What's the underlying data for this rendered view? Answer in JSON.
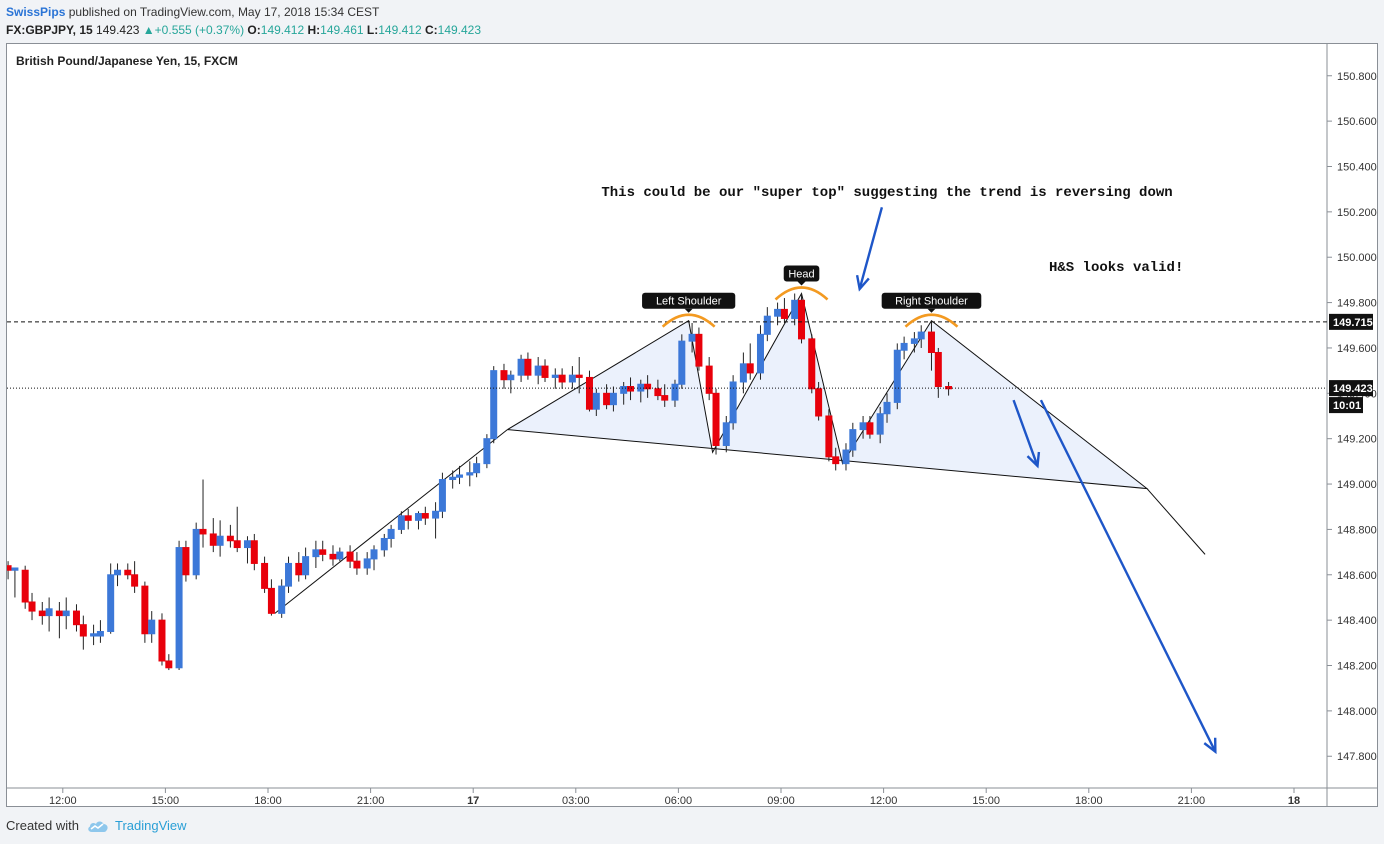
{
  "header": {
    "author": "SwissPips",
    "published": "published on TradingView.com, May 17, 2018 15:34 CEST",
    "symbol": "FX:GBPJPY, 15",
    "price": "149.423",
    "change": "+0.555 (+0.37%)",
    "o_label": "O:",
    "o_value": "149.412",
    "h_label": "H:",
    "h_value": "149.461",
    "l_label": "L:",
    "l_value": "149.412",
    "c_label": "C:",
    "c_value": "149.423"
  },
  "footer": {
    "created_with": "Created with",
    "brand": "TradingView",
    "brand_icon": "tradingview-cloud-icon"
  },
  "colors": {
    "bull": "#3c78d8",
    "bear": "#e8000b",
    "arrow": "#1e56c8",
    "arc": "#f39a21",
    "pattern_fill": "#e8eefb",
    "price_tag": "#111111"
  },
  "chart_data": {
    "type": "candlestick",
    "title": "British Pound/Japanese Yen, 15, FXCM",
    "ylim": [
      147.66,
      150.94
    ],
    "y_ticks": [
      150.8,
      150.6,
      150.4,
      150.2,
      150.0,
      149.8,
      149.6,
      149.4,
      149.2,
      149.0,
      148.8,
      148.6,
      148.4,
      148.2,
      148.0,
      147.8
    ],
    "y_tick_labels": [
      "150.800",
      "150.600",
      "150.400",
      "150.200",
      "150.000",
      "149.800",
      "149.600",
      "149.400",
      "149.200",
      "149.000",
      "148.800",
      "148.600",
      "148.400",
      "148.200",
      "148.000",
      "147.800"
    ],
    "x_ticks": [
      2.0,
      5.0,
      8.0,
      11.0,
      14.0,
      17.0,
      20.0,
      23.0,
      26.0,
      29.0,
      32.0,
      35.0,
      38.0
    ],
    "x_tick_labels": [
      "12:00",
      "15:00",
      "18:00",
      "21:00",
      "17",
      "03:00",
      "06:00",
      "09:00",
      "12:00",
      "15:00",
      "18:00",
      "21:00",
      "18"
    ],
    "xlim": [
      0.4,
      39.2
    ],
    "candles": [
      {
        "t": 0.4,
        "o": 148.64,
        "h": 148.66,
        "l": 148.58,
        "c": 148.62
      },
      {
        "t": 0.6,
        "o": 148.62,
        "h": 148.63,
        "l": 148.5,
        "c": 148.63
      },
      {
        "t": 0.9,
        "o": 148.62,
        "h": 148.64,
        "l": 148.45,
        "c": 148.48
      },
      {
        "t": 1.1,
        "o": 148.48,
        "h": 148.52,
        "l": 148.4,
        "c": 148.44
      },
      {
        "t": 1.4,
        "o": 148.44,
        "h": 148.48,
        "l": 148.38,
        "c": 148.42
      },
      {
        "t": 1.6,
        "o": 148.42,
        "h": 148.5,
        "l": 148.35,
        "c": 148.45
      },
      {
        "t": 1.9,
        "o": 148.44,
        "h": 148.48,
        "l": 148.32,
        "c": 148.42
      },
      {
        "t": 2.1,
        "o": 148.42,
        "h": 148.5,
        "l": 148.36,
        "c": 148.44
      },
      {
        "t": 2.4,
        "o": 148.44,
        "h": 148.47,
        "l": 148.35,
        "c": 148.38
      },
      {
        "t": 2.6,
        "o": 148.38,
        "h": 148.42,
        "l": 148.27,
        "c": 148.33
      },
      {
        "t": 2.9,
        "o": 148.33,
        "h": 148.38,
        "l": 148.29,
        "c": 148.34
      },
      {
        "t": 3.1,
        "o": 148.33,
        "h": 148.4,
        "l": 148.3,
        "c": 148.35
      },
      {
        "t": 3.4,
        "o": 148.35,
        "h": 148.65,
        "l": 148.34,
        "c": 148.6
      },
      {
        "t": 3.6,
        "o": 148.6,
        "h": 148.65,
        "l": 148.55,
        "c": 148.62
      },
      {
        "t": 3.9,
        "o": 148.62,
        "h": 148.65,
        "l": 148.58,
        "c": 148.6
      },
      {
        "t": 4.1,
        "o": 148.6,
        "h": 148.66,
        "l": 148.52,
        "c": 148.55
      },
      {
        "t": 4.4,
        "o": 148.55,
        "h": 148.57,
        "l": 148.3,
        "c": 148.34
      },
      {
        "t": 4.6,
        "o": 148.34,
        "h": 148.44,
        "l": 148.3,
        "c": 148.4
      },
      {
        "t": 4.9,
        "o": 148.4,
        "h": 148.43,
        "l": 148.2,
        "c": 148.22
      },
      {
        "t": 5.1,
        "o": 148.22,
        "h": 148.25,
        "l": 148.18,
        "c": 148.19
      },
      {
        "t": 5.4,
        "o": 148.19,
        "h": 148.75,
        "l": 148.18,
        "c": 148.72
      },
      {
        "t": 5.6,
        "o": 148.72,
        "h": 148.75,
        "l": 148.57,
        "c": 148.6
      },
      {
        "t": 5.9,
        "o": 148.6,
        "h": 148.83,
        "l": 148.58,
        "c": 148.8
      },
      {
        "t": 6.1,
        "o": 148.8,
        "h": 149.02,
        "l": 148.72,
        "c": 148.78
      },
      {
        "t": 6.4,
        "o": 148.78,
        "h": 148.85,
        "l": 148.7,
        "c": 148.73
      },
      {
        "t": 6.6,
        "o": 148.73,
        "h": 148.84,
        "l": 148.68,
        "c": 148.77
      },
      {
        "t": 6.9,
        "o": 148.77,
        "h": 148.82,
        "l": 148.72,
        "c": 148.75
      },
      {
        "t": 7.1,
        "o": 148.75,
        "h": 148.9,
        "l": 148.7,
        "c": 148.72
      },
      {
        "t": 7.4,
        "o": 148.72,
        "h": 148.77,
        "l": 148.65,
        "c": 148.75
      },
      {
        "t": 7.6,
        "o": 148.75,
        "h": 148.78,
        "l": 148.62,
        "c": 148.65
      },
      {
        "t": 7.9,
        "o": 148.65,
        "h": 148.68,
        "l": 148.52,
        "c": 148.54
      },
      {
        "t": 8.1,
        "o": 148.54,
        "h": 148.58,
        "l": 148.42,
        "c": 148.43
      },
      {
        "t": 8.4,
        "o": 148.43,
        "h": 148.58,
        "l": 148.41,
        "c": 148.55
      },
      {
        "t": 8.6,
        "o": 148.55,
        "h": 148.68,
        "l": 148.52,
        "c": 148.65
      },
      {
        "t": 8.9,
        "o": 148.65,
        "h": 148.7,
        "l": 148.57,
        "c": 148.6
      },
      {
        "t": 9.1,
        "o": 148.6,
        "h": 148.72,
        "l": 148.58,
        "c": 148.68
      },
      {
        "t": 9.4,
        "o": 148.68,
        "h": 148.75,
        "l": 148.63,
        "c": 148.71
      },
      {
        "t": 9.6,
        "o": 148.71,
        "h": 148.75,
        "l": 148.66,
        "c": 148.69
      },
      {
        "t": 9.9,
        "o": 148.69,
        "h": 148.73,
        "l": 148.64,
        "c": 148.67
      },
      {
        "t": 10.1,
        "o": 148.67,
        "h": 148.72,
        "l": 148.66,
        "c": 148.7
      },
      {
        "t": 10.4,
        "o": 148.7,
        "h": 148.73,
        "l": 148.63,
        "c": 148.66
      },
      {
        "t": 10.6,
        "o": 148.66,
        "h": 148.7,
        "l": 148.6,
        "c": 148.63
      },
      {
        "t": 10.9,
        "o": 148.63,
        "h": 148.7,
        "l": 148.6,
        "c": 148.67
      },
      {
        "t": 11.1,
        "o": 148.67,
        "h": 148.73,
        "l": 148.62,
        "c": 148.71
      },
      {
        "t": 11.4,
        "o": 148.71,
        "h": 148.78,
        "l": 148.68,
        "c": 148.76
      },
      {
        "t": 11.6,
        "o": 148.76,
        "h": 148.82,
        "l": 148.72,
        "c": 148.8
      },
      {
        "t": 11.9,
        "o": 148.8,
        "h": 148.88,
        "l": 148.78,
        "c": 148.86
      },
      {
        "t": 12.1,
        "o": 148.86,
        "h": 148.89,
        "l": 148.8,
        "c": 148.84
      },
      {
        "t": 12.4,
        "o": 148.84,
        "h": 148.88,
        "l": 148.8,
        "c": 148.87
      },
      {
        "t": 12.6,
        "o": 148.87,
        "h": 148.9,
        "l": 148.82,
        "c": 148.85
      },
      {
        "t": 12.9,
        "o": 148.85,
        "h": 148.92,
        "l": 148.76,
        "c": 148.88
      },
      {
        "t": 13.1,
        "o": 148.88,
        "h": 149.05,
        "l": 148.85,
        "c": 149.02
      },
      {
        "t": 13.4,
        "o": 149.02,
        "h": 149.06,
        "l": 148.98,
        "c": 149.03
      },
      {
        "t": 13.6,
        "o": 149.03,
        "h": 149.08,
        "l": 149.0,
        "c": 149.04
      },
      {
        "t": 13.9,
        "o": 149.04,
        "h": 149.1,
        "l": 148.99,
        "c": 149.05
      },
      {
        "t": 14.1,
        "o": 149.05,
        "h": 149.12,
        "l": 149.03,
        "c": 149.09
      },
      {
        "t": 14.4,
        "o": 149.09,
        "h": 149.22,
        "l": 149.07,
        "c": 149.2
      },
      {
        "t": 14.6,
        "o": 149.2,
        "h": 149.52,
        "l": 149.18,
        "c": 149.5
      },
      {
        "t": 14.9,
        "o": 149.5,
        "h": 149.53,
        "l": 149.42,
        "c": 149.46
      },
      {
        "t": 15.1,
        "o": 149.46,
        "h": 149.5,
        "l": 149.4,
        "c": 149.48
      },
      {
        "t": 15.4,
        "o": 149.48,
        "h": 149.57,
        "l": 149.45,
        "c": 149.55
      },
      {
        "t": 15.6,
        "o": 149.55,
        "h": 149.58,
        "l": 149.46,
        "c": 149.48
      },
      {
        "t": 15.9,
        "o": 149.48,
        "h": 149.56,
        "l": 149.44,
        "c": 149.52
      },
      {
        "t": 16.1,
        "o": 149.52,
        "h": 149.55,
        "l": 149.45,
        "c": 149.47
      },
      {
        "t": 16.4,
        "o": 149.47,
        "h": 149.51,
        "l": 149.42,
        "c": 149.48
      },
      {
        "t": 16.6,
        "o": 149.48,
        "h": 149.51,
        "l": 149.42,
        "c": 149.45
      },
      {
        "t": 16.9,
        "o": 149.45,
        "h": 149.52,
        "l": 149.42,
        "c": 149.48
      },
      {
        "t": 17.1,
        "o": 149.48,
        "h": 149.56,
        "l": 149.4,
        "c": 149.47
      },
      {
        "t": 17.4,
        "o": 149.47,
        "h": 149.5,
        "l": 149.32,
        "c": 149.33
      },
      {
        "t": 17.6,
        "o": 149.33,
        "h": 149.42,
        "l": 149.3,
        "c": 149.4
      },
      {
        "t": 17.9,
        "o": 149.4,
        "h": 149.44,
        "l": 149.33,
        "c": 149.35
      },
      {
        "t": 18.1,
        "o": 149.35,
        "h": 149.43,
        "l": 149.32,
        "c": 149.4
      },
      {
        "t": 18.4,
        "o": 149.4,
        "h": 149.45,
        "l": 149.35,
        "c": 149.43
      },
      {
        "t": 18.6,
        "o": 149.43,
        "h": 149.47,
        "l": 149.37,
        "c": 149.41
      },
      {
        "t": 18.9,
        "o": 149.41,
        "h": 149.46,
        "l": 149.36,
        "c": 149.44
      },
      {
        "t": 19.1,
        "o": 149.44,
        "h": 149.48,
        "l": 149.38,
        "c": 149.42
      },
      {
        "t": 19.4,
        "o": 149.42,
        "h": 149.46,
        "l": 149.37,
        "c": 149.39
      },
      {
        "t": 19.6,
        "o": 149.39,
        "h": 149.44,
        "l": 149.34,
        "c": 149.37
      },
      {
        "t": 19.9,
        "o": 149.37,
        "h": 149.46,
        "l": 149.34,
        "c": 149.44
      },
      {
        "t": 20.1,
        "o": 149.44,
        "h": 149.66,
        "l": 149.42,
        "c": 149.63
      },
      {
        "t": 20.4,
        "o": 149.63,
        "h": 149.71,
        "l": 149.58,
        "c": 149.66
      },
      {
        "t": 20.6,
        "o": 149.66,
        "h": 149.69,
        "l": 149.5,
        "c": 149.52
      },
      {
        "t": 20.9,
        "o": 149.52,
        "h": 149.56,
        "l": 149.37,
        "c": 149.4
      },
      {
        "t": 21.1,
        "o": 149.4,
        "h": 149.42,
        "l": 149.13,
        "c": 149.17
      },
      {
        "t": 21.4,
        "o": 149.17,
        "h": 149.3,
        "l": 149.14,
        "c": 149.27
      },
      {
        "t": 21.6,
        "o": 149.27,
        "h": 149.48,
        "l": 149.24,
        "c": 149.45
      },
      {
        "t": 21.9,
        "o": 149.45,
        "h": 149.58,
        "l": 149.4,
        "c": 149.53
      },
      {
        "t": 22.1,
        "o": 149.53,
        "h": 149.62,
        "l": 149.46,
        "c": 149.49
      },
      {
        "t": 22.4,
        "o": 149.49,
        "h": 149.7,
        "l": 149.46,
        "c": 149.66
      },
      {
        "t": 22.6,
        "o": 149.66,
        "h": 149.78,
        "l": 149.63,
        "c": 149.74
      },
      {
        "t": 22.9,
        "o": 149.74,
        "h": 149.8,
        "l": 149.7,
        "c": 149.77
      },
      {
        "t": 23.1,
        "o": 149.77,
        "h": 149.82,
        "l": 149.71,
        "c": 149.73
      },
      {
        "t": 23.4,
        "o": 149.73,
        "h": 149.84,
        "l": 149.7,
        "c": 149.81
      },
      {
        "t": 23.6,
        "o": 149.81,
        "h": 149.84,
        "l": 149.62,
        "c": 149.64
      },
      {
        "t": 23.9,
        "o": 149.64,
        "h": 149.66,
        "l": 149.4,
        "c": 149.42
      },
      {
        "t": 24.1,
        "o": 149.42,
        "h": 149.45,
        "l": 149.28,
        "c": 149.3
      },
      {
        "t": 24.4,
        "o": 149.3,
        "h": 149.33,
        "l": 149.1,
        "c": 149.12
      },
      {
        "t": 24.6,
        "o": 149.12,
        "h": 149.16,
        "l": 149.06,
        "c": 149.09
      },
      {
        "t": 24.9,
        "o": 149.09,
        "h": 149.18,
        "l": 149.06,
        "c": 149.15
      },
      {
        "t": 25.1,
        "o": 149.15,
        "h": 149.27,
        "l": 149.12,
        "c": 149.24
      },
      {
        "t": 25.4,
        "o": 149.24,
        "h": 149.3,
        "l": 149.2,
        "c": 149.27
      },
      {
        "t": 25.6,
        "o": 149.27,
        "h": 149.3,
        "l": 149.2,
        "c": 149.22
      },
      {
        "t": 25.9,
        "o": 149.22,
        "h": 149.34,
        "l": 149.18,
        "c": 149.31
      },
      {
        "t": 26.1,
        "o": 149.31,
        "h": 149.4,
        "l": 149.27,
        "c": 149.36
      },
      {
        "t": 26.4,
        "o": 149.36,
        "h": 149.62,
        "l": 149.33,
        "c": 149.59
      },
      {
        "t": 26.6,
        "o": 149.59,
        "h": 149.65,
        "l": 149.55,
        "c": 149.62
      },
      {
        "t": 26.9,
        "o": 149.62,
        "h": 149.67,
        "l": 149.58,
        "c": 149.64
      },
      {
        "t": 27.1,
        "o": 149.64,
        "h": 149.7,
        "l": 149.6,
        "c": 149.67
      },
      {
        "t": 27.4,
        "o": 149.67,
        "h": 149.72,
        "l": 149.5,
        "c": 149.58
      },
      {
        "t": 27.6,
        "o": 149.58,
        "h": 149.6,
        "l": 149.38,
        "c": 149.43
      },
      {
        "t": 27.9,
        "o": 149.43,
        "h": 149.45,
        "l": 149.39,
        "c": 149.42
      }
    ],
    "horizontal_lines": [
      {
        "price": 149.715,
        "style": "dashed",
        "label": "149.715"
      },
      {
        "price": 149.423,
        "style": "dotted",
        "label": "149.423"
      }
    ],
    "countdown_label": "10:01",
    "pattern_points": [
      {
        "t": 15.0,
        "p": 149.24
      },
      {
        "t": 20.3,
        "p": 149.72
      },
      {
        "t": 21.0,
        "p": 149.14
      },
      {
        "t": 23.6,
        "p": 149.84
      },
      {
        "t": 24.8,
        "p": 149.09
      },
      {
        "t": 27.4,
        "p": 149.72
      },
      {
        "t": 33.7,
        "p": 148.98
      }
    ],
    "trendlines": [
      {
        "t1": 8.2,
        "p1": 148.43,
        "t2": 15.0,
        "p2": 149.24
      },
      {
        "t1": 33.7,
        "p1": 148.98,
        "t2": 35.4,
        "p2": 148.69
      }
    ],
    "annotations": [
      {
        "type": "tag",
        "text": "Left Shoulder",
        "t": 20.3,
        "p": 149.72
      },
      {
        "type": "tag",
        "text": "Head",
        "t": 23.6,
        "p": 149.84
      },
      {
        "type": "tag",
        "text": "Right Shoulder",
        "t": 27.4,
        "p": 149.72
      },
      {
        "type": "note",
        "text": "This could be our \"super top\" suggesting the trend is reversing down",
        "t": 26.1,
        "p": 150.27
      },
      {
        "type": "note",
        "text": "H&S looks valid!",
        "t": 32.8,
        "p": 149.94
      }
    ]
  }
}
